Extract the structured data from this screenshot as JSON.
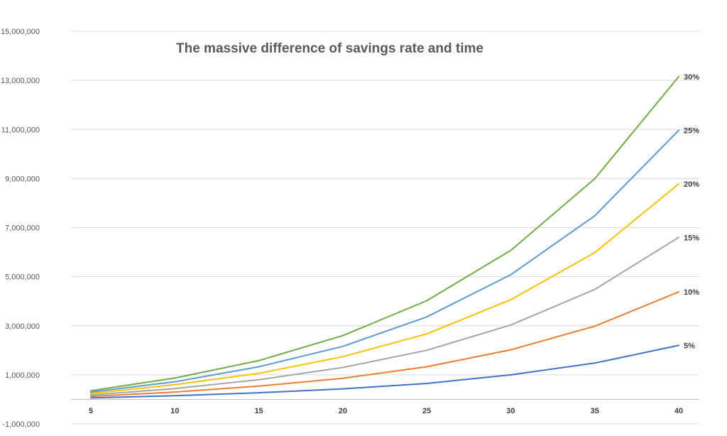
{
  "chart_data": {
    "type": "line",
    "title": "The massive difference of savings rate and time",
    "xlabel": "",
    "ylabel": "",
    "x": [
      5,
      10,
      15,
      20,
      25,
      30,
      35,
      40
    ],
    "ylim": [
      -1000000,
      15000000
    ],
    "y_ticks": [
      "15,000,000",
      "13,000,000",
      "11,000,000",
      "9,000,000",
      "7,000,000",
      "5,000,000",
      "3,000,000",
      "1,000,000",
      "-1,000,000"
    ],
    "y_tick_values": [
      15000000,
      13000000,
      11000000,
      9000000,
      7000000,
      5000000,
      3000000,
      1000000,
      -1000000
    ],
    "grid": true,
    "legend": "end-of-line labels",
    "series": [
      {
        "name": "5%",
        "color": "#4472C4",
        "values": [
          60000,
          150000,
          270000,
          430000,
          650000,
          1000000,
          1480000,
          2200000
        ]
      },
      {
        "name": "10%",
        "color": "#ED7D31",
        "values": [
          120000,
          300000,
          540000,
          860000,
          1330000,
          2020000,
          2980000,
          4380000
        ]
      },
      {
        "name": "15%",
        "color": "#A5A5A5",
        "values": [
          180000,
          440000,
          800000,
          1300000,
          2000000,
          3030000,
          4480000,
          6600000
        ]
      },
      {
        "name": "20%",
        "color": "#FFC000",
        "values": [
          240000,
          600000,
          1060000,
          1740000,
          2670000,
          4060000,
          5980000,
          8780000
        ]
      },
      {
        "name": "25%",
        "color": "#5B9BD5",
        "values": [
          300000,
          720000,
          1330000,
          2160000,
          3360000,
          5080000,
          7480000,
          10960000
        ]
      },
      {
        "name": "30%",
        "color": "#70AD47",
        "values": [
          350000,
          870000,
          1580000,
          2600000,
          4020000,
          6070000,
          8990000,
          13150000
        ]
      }
    ]
  }
}
